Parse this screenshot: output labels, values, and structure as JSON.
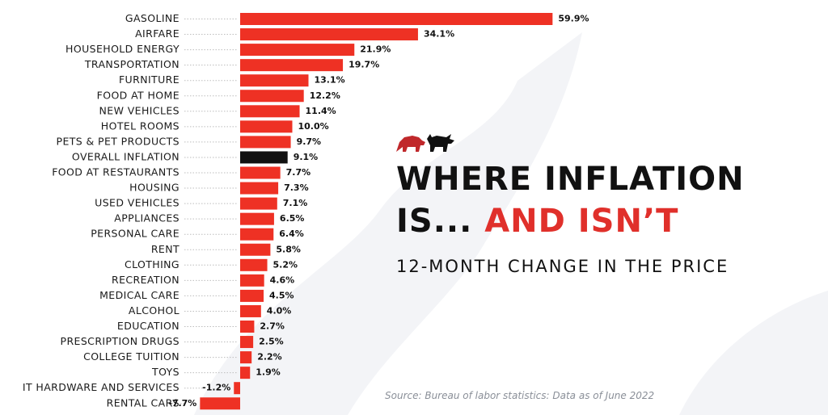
{
  "title": {
    "part1": "WHERE INFLATION",
    "part2": "IS...",
    "part3": "AND ISN’T"
  },
  "subtitle": "12-MONTH CHANGE IN THE PRICE",
  "source": "Source: Bureau of labor statistics: Data as of June 2022",
  "logo": {
    "icon": "bear-and-bull-icon",
    "colors": [
      "#c0282b",
      "#111111"
    ]
  },
  "chart_data": {
    "type": "bar",
    "orientation": "horizontal",
    "categories": [
      "GASOLINE",
      "AIRFARE",
      "HOUSEHOLD ENERGY",
      "TRANSPORTATION",
      "FURNITURE",
      "FOOD AT HOME",
      "NEW VEHICLES",
      "HOTEL ROOMS",
      "PETS & PET PRODUCTS",
      "OVERALL INFLATION",
      "FOOD AT RESTAURANTS",
      "HOUSING",
      "USED VEHICLES",
      "APPLIANCES",
      "PERSONAL CARE",
      "RENT",
      "CLOTHING",
      "RECREATION",
      "MEDICAL CARE",
      "ALCOHOL",
      "EDUCATION",
      "PRESCRIPTION DRUGS",
      "COLLEGE TUITION",
      "TOYS",
      "IT HARDWARE AND SERVICES",
      "RENTAL CARS"
    ],
    "values": [
      59.9,
      34.1,
      21.9,
      19.7,
      13.1,
      12.2,
      11.4,
      10.0,
      9.7,
      9.1,
      7.7,
      7.3,
      7.1,
      6.5,
      6.4,
      5.8,
      5.2,
      4.6,
      4.5,
      4.0,
      2.7,
      2.5,
      2.2,
      1.9,
      -1.2,
      -7.7
    ],
    "value_labels": [
      "59.9%",
      "34.1%",
      "21.9%",
      "19.7%",
      "13.1%",
      "12.2%",
      "11.4%",
      "10.0%",
      "9.7%",
      "9.1%",
      "7.7%",
      "7.3%",
      "7.1%",
      "6.5%",
      "6.4%",
      "5.8%",
      "5.2%",
      "4.6%",
      "4.5%",
      "4.0%",
      "2.7%",
      "2.5%",
      "2.2%",
      "1.9%",
      "-1.2%",
      "-7.7%"
    ],
    "unit": "%",
    "highlight_category": "OVERALL INFLATION",
    "bar_color": "#ee3124",
    "highlight_color": "#111111",
    "grid": false,
    "legend": "none"
  }
}
